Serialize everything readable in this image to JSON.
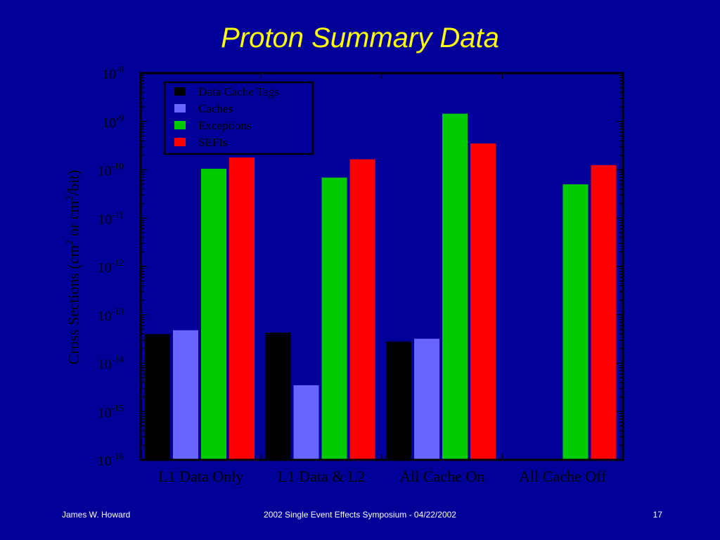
{
  "slide": {
    "title": "Proton Summary Data",
    "footer_left": "James W. Howard",
    "footer_center": "2002 Single Event Effects Symposium - 04/22/2002",
    "footer_right": "17"
  },
  "colors": {
    "background": "#000099",
    "title": "#ffff00",
    "plot_background": "#000099",
    "axis": "#000000"
  },
  "chart_data": {
    "type": "bar",
    "yscale": "log",
    "ylabel_parts": {
      "base": "Cross Sections (cm",
      "exp1": "2",
      "mid": " or cm",
      "exp2": "2",
      "end": "/bit)"
    },
    "ylim": [
      1e-16,
      1e-08
    ],
    "yticks": [
      {
        "value": 1e-08,
        "base": "10",
        "exp": "-8"
      },
      {
        "value": 1e-09,
        "base": "10",
        "exp": "-9"
      },
      {
        "value": 1e-10,
        "base": "10",
        "exp": "-10"
      },
      {
        "value": 1e-11,
        "base": "10",
        "exp": "-11"
      },
      {
        "value": 1e-12,
        "base": "10",
        "exp": "-12"
      },
      {
        "value": 1e-13,
        "base": "10",
        "exp": "-13"
      },
      {
        "value": 1e-14,
        "base": "10",
        "exp": "-14"
      },
      {
        "value": 1e-15,
        "base": "10",
        "exp": "-15"
      },
      {
        "value": 1e-16,
        "base": "10",
        "exp": "-16"
      }
    ],
    "categories": [
      "L1 Data Only",
      "L1 Data & L2",
      "All Cache On",
      "All Cache Off"
    ],
    "legend_position": "top-left",
    "series": [
      {
        "name": "Data Cache Tags",
        "color": "#000000",
        "values": [
          4e-14,
          4.3e-14,
          2.8e-14,
          null
        ]
      },
      {
        "name": "Caches",
        "color": "#6666ff",
        "values": [
          4.8e-14,
          3.5e-15,
          3.2e-14,
          null
        ]
      },
      {
        "name": "Exceptions",
        "color": "#00cc00",
        "values": [
          1.05e-10,
          6.9e-11,
          1.45e-09,
          5e-11
        ]
      },
      {
        "name": "SEFIs",
        "color": "#ff0000",
        "values": [
          1.8e-10,
          1.65e-10,
          3.5e-10,
          1.25e-10
        ]
      }
    ]
  }
}
